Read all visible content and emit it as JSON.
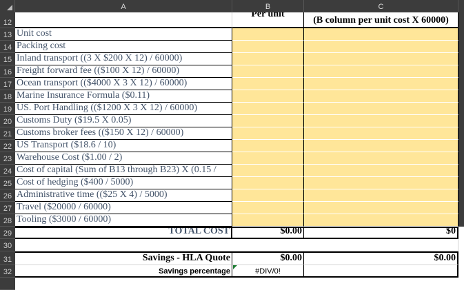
{
  "columns": [
    "A",
    "B",
    "C"
  ],
  "header_row": {
    "row": "12",
    "b": "Per unit",
    "c": "(B column per unit cost X 60000)"
  },
  "items": [
    {
      "row": "13",
      "label": "Unit cost"
    },
    {
      "row": "14",
      "label": "Packing cost"
    },
    {
      "row": "15",
      "label": "Inland transport ((3 X $200 X 12) / 60000)"
    },
    {
      "row": "16",
      "label": "Freight forward fee (($100 X 12) / 60000)"
    },
    {
      "row": "17",
      "label": "Ocean transport (($4000 X 3 X 12) / 60000)"
    },
    {
      "row": "18",
      "label": "Marine Insurance Formula ($0.11)"
    },
    {
      "row": "19",
      "label": "US. Port Handling (($1200 X 3 X 12) / 60000)"
    },
    {
      "row": "20",
      "label": "Customs Duty ($19.5 X 0.05)"
    },
    {
      "row": "21",
      "label": "Customs broker fees (($150 X 12) / 60000)"
    },
    {
      "row": "22",
      "label": "US Transport ($18.6 / 10)"
    },
    {
      "row": "23",
      "label": "Warehouse Cost ($1.00 / 2)"
    },
    {
      "row": "24",
      "label": "Cost of capital (Sum of B13 through B23) X (0.15 /"
    },
    {
      "row": "25",
      "label": "Cost of hedging ($400 / 5000)"
    },
    {
      "row": "26",
      "label": "Administrative time (($25 X 4) / 5000)"
    },
    {
      "row": "27",
      "label": "Travel ($20000 / 60000)"
    },
    {
      "row": "28",
      "label": "Tooling ($3000 / 60000)"
    }
  ],
  "total": {
    "row": "29",
    "label": "TOTAL COST",
    "b": "$0.00",
    "c": "$0"
  },
  "blank_row": "30",
  "savings": {
    "row": "31",
    "label": "Savings - HLA Quote",
    "b": "$0.00",
    "c": "$0.00"
  },
  "percentage": {
    "row": "32",
    "label": "Savings percentage",
    "b": "#DIV/0!"
  },
  "colors": {
    "fill": "#ffe699",
    "label_text": "#44546a",
    "header_bg": "#3c3c3c"
  }
}
